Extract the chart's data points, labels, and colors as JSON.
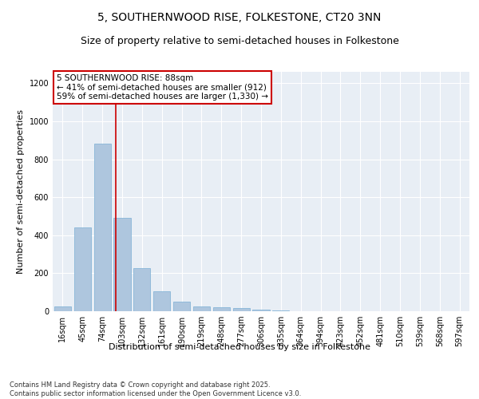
{
  "title": "5, SOUTHERNWOOD RISE, FOLKESTONE, CT20 3NN",
  "subtitle": "Size of property relative to semi-detached houses in Folkestone",
  "xlabel": "Distribution of semi-detached houses by size in Folkestone",
  "ylabel": "Number of semi-detached properties",
  "categories": [
    "16sqm",
    "45sqm",
    "74sqm",
    "103sqm",
    "132sqm",
    "161sqm",
    "190sqm",
    "219sqm",
    "248sqm",
    "277sqm",
    "306sqm",
    "335sqm",
    "364sqm",
    "394sqm",
    "423sqm",
    "452sqm",
    "481sqm",
    "510sqm",
    "539sqm",
    "568sqm",
    "597sqm"
  ],
  "values": [
    25,
    440,
    880,
    490,
    225,
    105,
    50,
    25,
    20,
    15,
    8,
    4,
    0,
    0,
    0,
    0,
    0,
    0,
    0,
    0,
    0
  ],
  "bar_color": "#aec6de",
  "bar_edge_color": "#7aafd4",
  "vline_x": 2.67,
  "vline_color": "#cc0000",
  "annotation_text": "5 SOUTHERNWOOD RISE: 88sqm\n← 41% of semi-detached houses are smaller (912)\n59% of semi-detached houses are larger (1,330) →",
  "annotation_box_color": "#cc0000",
  "ylim": [
    0,
    1260
  ],
  "yticks": [
    0,
    200,
    400,
    600,
    800,
    1000,
    1200
  ],
  "bg_color": "#e8eef5",
  "grid_color": "#ffffff",
  "footer": "Contains HM Land Registry data © Crown copyright and database right 2025.\nContains public sector information licensed under the Open Government Licence v3.0.",
  "title_fontsize": 10,
  "subtitle_fontsize": 9,
  "axis_label_fontsize": 8,
  "tick_fontsize": 7,
  "annotation_fontsize": 7.5,
  "footer_fontsize": 6
}
